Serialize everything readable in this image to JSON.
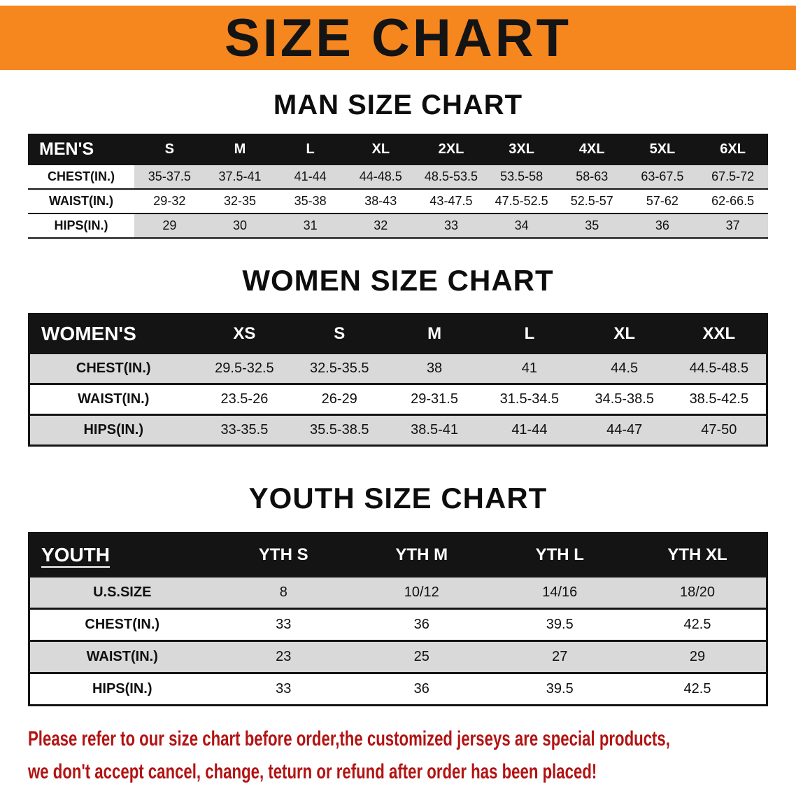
{
  "banner": {
    "title": "SIZE CHART",
    "bg_color": "#f6871f",
    "text_color": "#141414"
  },
  "colors": {
    "table_header_bg": "#141414",
    "row_stripe": "#d9d9d9",
    "disclaimer_text": "#b21313"
  },
  "chart_data": [
    {
      "type": "table",
      "title": "MAN SIZE CHART",
      "columns": [
        "MEN'S",
        "S",
        "M",
        "L",
        "XL",
        "2XL",
        "3XL",
        "4XL",
        "5XL",
        "6XL"
      ],
      "rows": [
        [
          "CHEST(IN.)",
          "35-37.5",
          "37.5-41",
          "41-44",
          "44-48.5",
          "48.5-53.5",
          "53.5-58",
          "58-63",
          "63-67.5",
          "67.5-72"
        ],
        [
          "WAIST(IN.)",
          "29-32",
          "32-35",
          "35-38",
          "38-43",
          "43-47.5",
          "47.5-52.5",
          "52.5-57",
          "57-62",
          "62-66.5"
        ],
        [
          "HIPS(IN.)",
          "29",
          "30",
          "31",
          "32",
          "33",
          "34",
          "35",
          "36",
          "37"
        ]
      ]
    },
    {
      "type": "table",
      "title": "WOMEN SIZE CHART",
      "columns": [
        "WOMEN'S",
        "XS",
        "S",
        "M",
        "L",
        "XL",
        "XXL"
      ],
      "rows": [
        [
          "CHEST(IN.)",
          "29.5-32.5",
          "32.5-35.5",
          "38",
          "41",
          "44.5",
          "44.5-48.5"
        ],
        [
          "WAIST(IN.)",
          "23.5-26",
          "26-29",
          "29-31.5",
          "31.5-34.5",
          "34.5-38.5",
          "38.5-42.5"
        ],
        [
          "HIPS(IN.)",
          "33-35.5",
          "35.5-38.5",
          "38.5-41",
          "41-44",
          "44-47",
          "47-50"
        ]
      ]
    },
    {
      "type": "table",
      "title": "YOUTH SIZE CHART",
      "columns": [
        "YOUTH",
        "YTH S",
        "YTH M",
        "YTH L",
        "YTH XL"
      ],
      "rows": [
        [
          "U.S.SIZE",
          "8",
          "10/12",
          "14/16",
          "18/20"
        ],
        [
          "CHEST(IN.)",
          "33",
          "36",
          "39.5",
          "42.5"
        ],
        [
          "WAIST(IN.)",
          "23",
          "25",
          "27",
          "29"
        ],
        [
          "HIPS(IN.)",
          "33",
          "36",
          "39.5",
          "42.5"
        ]
      ]
    }
  ],
  "disclaimer": {
    "lines": [
      "Please refer to our size chart before order,the customized jerseys are special products,",
      "we don't accept cancel, change, teturn or refund after order has been placed!"
    ]
  }
}
